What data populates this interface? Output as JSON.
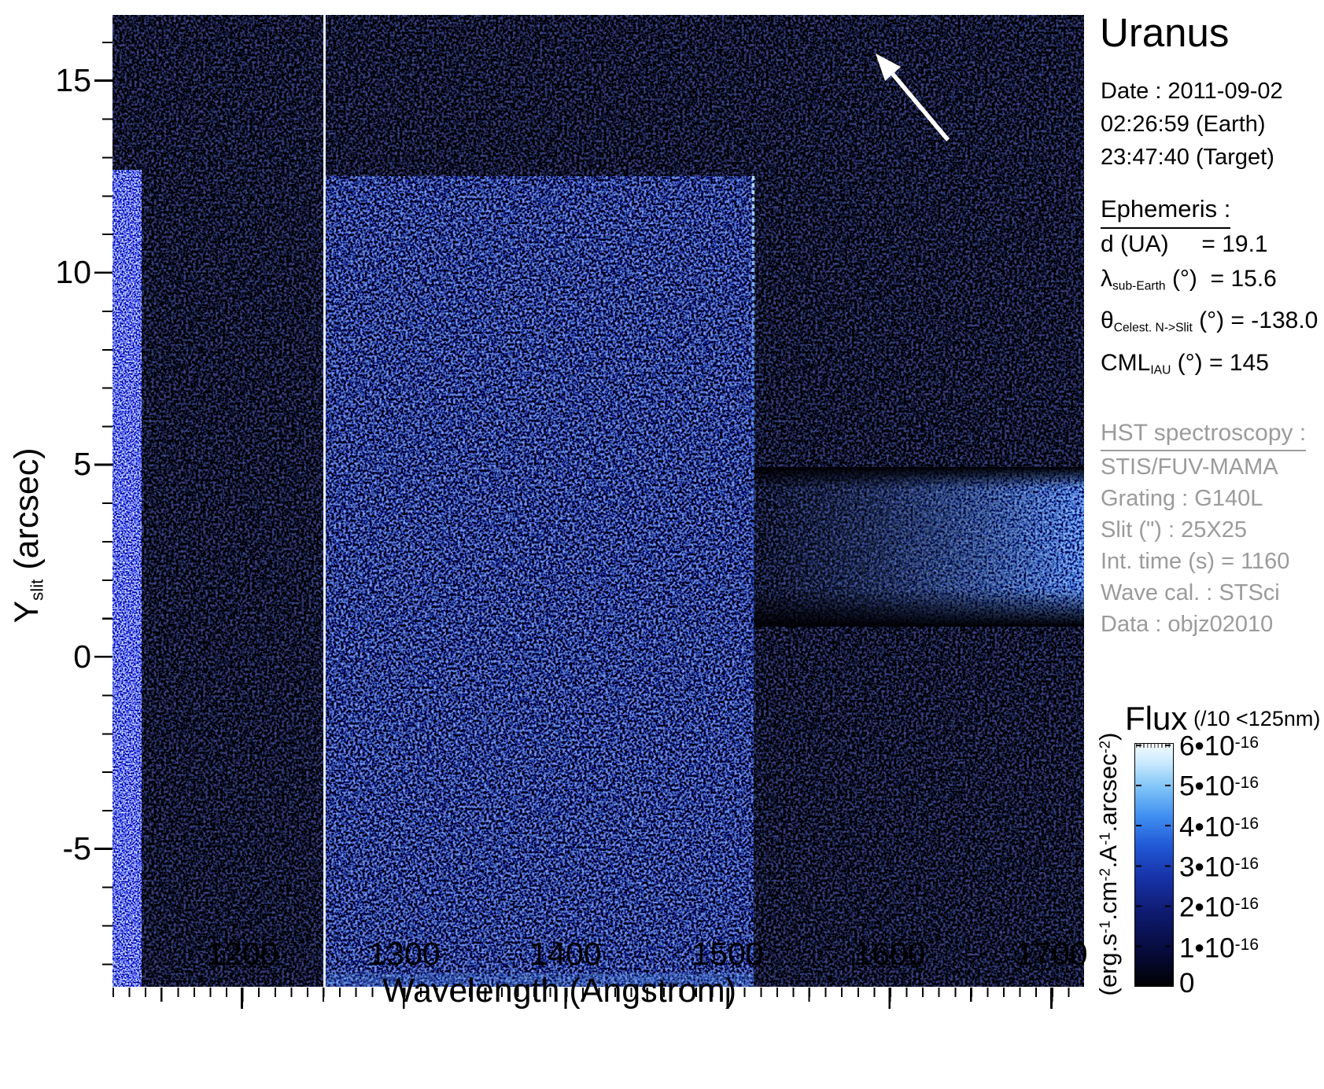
{
  "info_panel": {
    "title": "Uranus",
    "date_lines": [
      "Date : 2011-09-02",
      "02:26:59 (Earth)",
      "23:47:40 (Target)"
    ],
    "ephemeris": {
      "header": "Ephemeris :",
      "d_ua": 19.1,
      "lambda_sub_earth_deg": 15.6,
      "theta_celest_n_to_slit_deg": -138.0,
      "cml_iau_deg": 145,
      "line_parts": [
        [
          {
            "t": "d (UA)     = 19.1"
          }
        ],
        [
          {
            "t": "λ"
          },
          {
            "sub": "sub-Earth"
          },
          {
            "t": " (°)  = 15.6"
          }
        ],
        [
          {
            "t": "θ"
          },
          {
            "sub": "Celest. N->Slit"
          },
          {
            "t": " (°) = -138.0"
          }
        ],
        [
          {
            "t": "CML"
          },
          {
            "sub": "IAU"
          },
          {
            "t": " (°) = 145"
          }
        ]
      ]
    },
    "hst": {
      "header": "HST spectroscopy :",
      "lines": [
        "STIS/FUV-MAMA",
        "Grating : G140L",
        "Slit (\") : 25X25",
        "Int. time (s) = 1160",
        "Wave cal. : STSci",
        "Data : objz02010"
      ]
    }
  },
  "colorbar": {
    "title": "Flux",
    "note": "(/10 <125nm)",
    "unit_parts": [
      {
        "t": "(erg.s"
      },
      {
        "sup": "-1"
      },
      {
        "t": ".cm"
      },
      {
        "sup": "-2"
      },
      {
        "t": ".A"
      },
      {
        "sup": "-1"
      },
      {
        "t": ".arcsec"
      },
      {
        "sup": "-2"
      },
      {
        "t": ")"
      }
    ],
    "tick_label_parts": [
      [
        {
          "t": "6•10"
        },
        {
          "sup": "-16"
        }
      ],
      [
        {
          "t": "5•10"
        },
        {
          "sup": "-16"
        }
      ],
      [
        {
          "t": "4•10"
        },
        {
          "sup": "-16"
        }
      ],
      [
        {
          "t": "3•10"
        },
        {
          "sup": "-16"
        }
      ],
      [
        {
          "t": "2•10"
        },
        {
          "sup": "-16"
        }
      ],
      [
        {
          "t": "1•10"
        },
        {
          "sup": "-16"
        }
      ],
      [
        {
          "t": "0"
        }
      ]
    ]
  },
  "chart_data": {
    "type": "heatmap",
    "title": "Uranus",
    "xlabel": "Wavelength (Angstrom)",
    "ylabel_parts": [
      {
        "t": "Y"
      },
      {
        "sub": "slit"
      },
      {
        "t": " (arcsec)"
      }
    ],
    "x_range_angstrom": [
      1120,
      1720
    ],
    "y_range_arcsec": [
      -8.6,
      16.7
    ],
    "x_tick_labels": [
      "1200",
      "1300",
      "1400",
      "1500",
      "1600",
      "1700"
    ],
    "y_tick_labels": [
      "15",
      "10",
      "5",
      "0",
      "-5"
    ],
    "x_minor_tick_step_angstrom": 10,
    "y_minor_tick_step_arcsec": 1,
    "grid": false,
    "colormap": "black-blue-white",
    "colorbar": {
      "label": "Flux",
      "note": "(/10 <125nm)",
      "units": "erg.s-1.cm-2.A-1.arcsec-2",
      "min": 0,
      "max": 6e-16,
      "tick_values": [
        6e-16,
        5e-16,
        4e-16,
        3e-16,
        2e-16,
        1e-16,
        0
      ]
    },
    "regions": [
      {
        "name": "airglow-slit-edge-strip",
        "x_angstrom": [
          1120,
          1138
        ],
        "y_arcsec": [
          -8.6,
          12.7
        ],
        "appearance": "dense bright white/blue speckle column at short-wavelength edge"
      },
      {
        "name": "segment-gap-line",
        "x_angstrom": [
          1250,
          1251
        ],
        "y_arcsec": [
          -8.6,
          16.7
        ],
        "appearance": "thin solid white vertical line spanning full slit height"
      },
      {
        "name": "detector-background",
        "x_angstrom": [
          1251,
          1515
        ],
        "y_arcsec": [
          -8.6,
          12.5
        ],
        "appearance": "faint dark-blue speckle noise rectangle"
      },
      {
        "name": "bright-edge-1515A",
        "x_angstrom": [
          1513,
          1517
        ],
        "y_arcsec": [
          -2,
          12.5
        ],
        "appearance": "brighter dotted blue vertical edge, fading downward"
      },
      {
        "name": "disk-continuum-band",
        "x_angstrom": [
          1515,
          1720
        ],
        "y_arcsec": [
          0.8,
          4.9
        ],
        "appearance": "horizontal blue speckle band brightening toward long wavelengths"
      },
      {
        "name": "direction-arrow",
        "tail_angstrom_arcsec": [
          1636,
          13.4
        ],
        "tip_angstrom_arcsec": [
          1591,
          15.7
        ],
        "appearance": "white arrow pointing up-left in dark upper-right corner"
      }
    ]
  }
}
